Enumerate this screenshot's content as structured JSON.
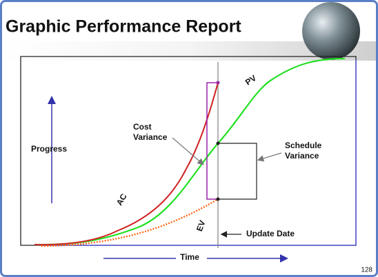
{
  "title": "Graphic Performance Report",
  "labels": {
    "progress": "Progress",
    "time": "Time",
    "ac": "AC",
    "pv": "PV",
    "ev": "EV",
    "cost_variance": [
      "Cost",
      "Variance"
    ],
    "schedule_variance": [
      "Schedule",
      "Variance"
    ],
    "update_date": "Update Date"
  },
  "page_number": "128"
}
